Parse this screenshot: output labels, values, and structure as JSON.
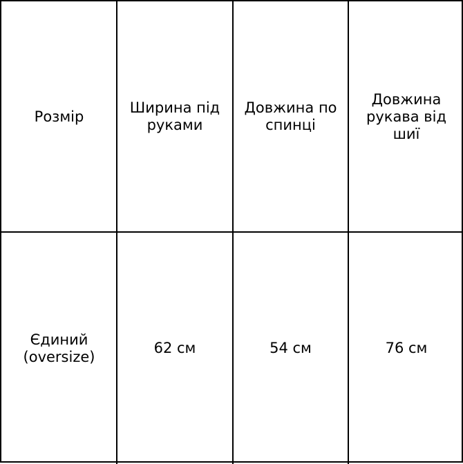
{
  "table": {
    "headers": [
      "Розмір",
      "Ширина під руками",
      "Довжина по спинці",
      "Довжина рукава від шиї"
    ],
    "rows": [
      [
        "Єдиний (oversize)",
        "62 см",
        "54 см",
        "76 см"
      ]
    ]
  }
}
